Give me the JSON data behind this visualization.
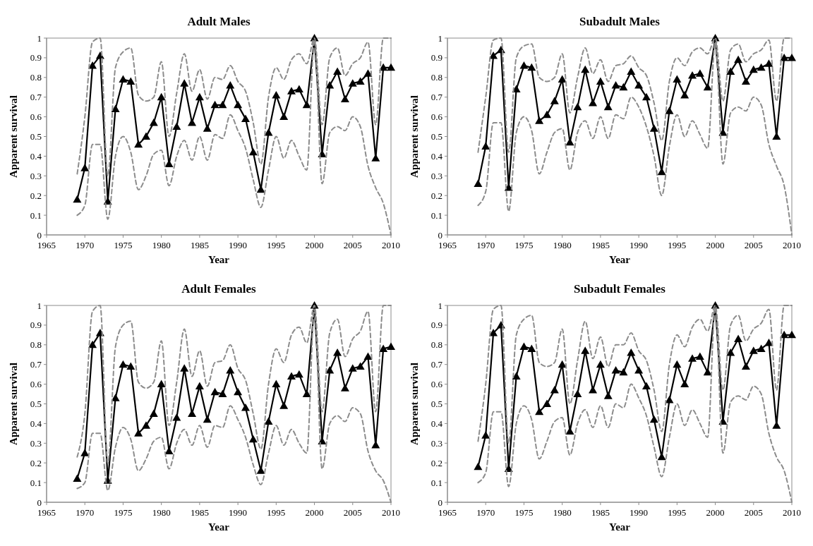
{
  "chart_data": [
    {
      "type": "line",
      "title": "Adult Males",
      "xlabel": "Year",
      "ylabel": "Apparent survival",
      "xlim": [
        1965,
        2010
      ],
      "xticks": [
        1965,
        1970,
        1975,
        1980,
        1985,
        1990,
        1995,
        2000,
        2005,
        2010
      ],
      "ylim": [
        0,
        1
      ],
      "yticks": [
        0,
        0.1,
        0.2,
        0.3,
        0.4,
        0.5,
        0.6,
        0.7,
        0.8,
        0.9,
        1
      ],
      "x": [
        1969,
        1970,
        1971,
        1972,
        1973,
        1974,
        1975,
        1976,
        1977,
        1978,
        1979,
        1980,
        1981,
        1982,
        1983,
        1984,
        1985,
        1986,
        1987,
        1988,
        1989,
        1990,
        1991,
        1992,
        1993,
        1994,
        1995,
        1996,
        1997,
        1998,
        1999,
        2000,
        2001,
        2002,
        2003,
        2004,
        2005,
        2006,
        2007,
        2008,
        2009,
        2010
      ],
      "series": [
        {
          "color": "#000000",
          "marker": "triangle",
          "line_style": "solid",
          "values": [
            0.18,
            0.34,
            0.86,
            0.91,
            0.17,
            0.64,
            0.79,
            0.78,
            0.46,
            0.5,
            0.57,
            0.7,
            0.36,
            0.55,
            0.77,
            0.57,
            0.7,
            0.54,
            0.66,
            0.66,
            0.76,
            0.66,
            0.59,
            0.42,
            0.23,
            0.52,
            0.71,
            0.6,
            0.73,
            0.74,
            0.66,
            1.0,
            0.41,
            0.76,
            0.83,
            0.69,
            0.77,
            0.78,
            0.82,
            0.39,
            0.85,
            0.85
          ]
        },
        {
          "color": "#8c8c8c",
          "marker": "none",
          "line_style": "dashed",
          "values": [
            0.31,
            0.6,
            0.98,
            1.0,
            0.3,
            0.85,
            0.93,
            0.95,
            0.71,
            0.68,
            0.7,
            0.88,
            0.5,
            0.72,
            0.92,
            0.73,
            0.84,
            0.69,
            0.8,
            0.79,
            0.86,
            0.78,
            0.73,
            0.57,
            0.36,
            0.7,
            0.85,
            0.79,
            0.89,
            0.92,
            0.87,
            1.0,
            0.56,
            0.9,
            0.95,
            0.81,
            0.87,
            0.9,
            0.98,
            0.56,
            1.0,
            1.0
          ]
        },
        {
          "color": "#8c8c8c",
          "marker": "none",
          "line_style": "dashed",
          "values": [
            0.1,
            0.15,
            0.46,
            0.46,
            0.08,
            0.4,
            0.5,
            0.42,
            0.23,
            0.3,
            0.41,
            0.43,
            0.25,
            0.4,
            0.48,
            0.38,
            0.5,
            0.38,
            0.51,
            0.49,
            0.61,
            0.53,
            0.44,
            0.28,
            0.14,
            0.33,
            0.5,
            0.39,
            0.48,
            0.4,
            0.33,
            0.99,
            0.26,
            0.52,
            0.55,
            0.53,
            0.6,
            0.55,
            0.35,
            0.24,
            0.16,
            0
          ]
        }
      ]
    },
    {
      "type": "line",
      "title": "Subadult Males",
      "xlabel": "Year",
      "ylabel": "Apparent survival",
      "xlim": [
        1965,
        2010
      ],
      "xticks": [
        1965,
        1970,
        1975,
        1980,
        1985,
        1990,
        1995,
        2000,
        2005,
        2010
      ],
      "ylim": [
        0,
        1
      ],
      "yticks": [
        0,
        0.1,
        0.2,
        0.3,
        0.4,
        0.5,
        0.6,
        0.7,
        0.8,
        0.9,
        1
      ],
      "x": [
        1969,
        1970,
        1971,
        1972,
        1973,
        1974,
        1975,
        1976,
        1977,
        1978,
        1979,
        1980,
        1981,
        1982,
        1983,
        1984,
        1985,
        1986,
        1987,
        1988,
        1989,
        1990,
        1991,
        1992,
        1993,
        1994,
        1995,
        1996,
        1997,
        1998,
        1999,
        2000,
        2001,
        2002,
        2003,
        2004,
        2005,
        2006,
        2007,
        2008,
        2009,
        2010
      ],
      "series": [
        {
          "color": "#000000",
          "marker": "triangle",
          "line_style": "solid",
          "values": [
            0.26,
            0.45,
            0.91,
            0.94,
            0.24,
            0.74,
            0.86,
            0.85,
            0.58,
            0.61,
            0.68,
            0.79,
            0.47,
            0.65,
            0.84,
            0.67,
            0.78,
            0.65,
            0.76,
            0.75,
            0.83,
            0.76,
            0.7,
            0.54,
            0.32,
            0.63,
            0.79,
            0.71,
            0.81,
            0.82,
            0.75,
            1.0,
            0.52,
            0.83,
            0.89,
            0.78,
            0.84,
            0.85,
            0.87,
            0.5,
            0.9,
            0.9
          ]
        },
        {
          "color": "#8c8c8c",
          "marker": "none",
          "line_style": "dashed",
          "values": [
            0.42,
            0.7,
            0.99,
            1.0,
            0.42,
            0.9,
            0.96,
            0.97,
            0.8,
            0.78,
            0.8,
            0.92,
            0.62,
            0.8,
            0.95,
            0.82,
            0.89,
            0.78,
            0.86,
            0.87,
            0.91,
            0.85,
            0.81,
            0.67,
            0.48,
            0.78,
            0.9,
            0.86,
            0.93,
            0.95,
            0.92,
            1.0,
            0.68,
            0.94,
            0.97,
            0.88,
            0.92,
            0.94,
            0.99,
            0.68,
            1.0,
            1.0
          ]
        },
        {
          "color": "#8c8c8c",
          "marker": "none",
          "line_style": "dashed",
          "values": [
            0.15,
            0.22,
            0.57,
            0.57,
            0.12,
            0.52,
            0.6,
            0.53,
            0.31,
            0.42,
            0.52,
            0.54,
            0.33,
            0.52,
            0.58,
            0.49,
            0.6,
            0.49,
            0.61,
            0.59,
            0.7,
            0.65,
            0.55,
            0.4,
            0.2,
            0.45,
            0.61,
            0.5,
            0.58,
            0.51,
            0.44,
            0.98,
            0.36,
            0.62,
            0.65,
            0.63,
            0.7,
            0.66,
            0.46,
            0.35,
            0.25,
            0
          ]
        }
      ]
    },
    {
      "type": "line",
      "title": "Adult Females",
      "xlabel": "Year",
      "ylabel": "Apparent survival",
      "xlim": [
        1965,
        2010
      ],
      "xticks": [
        1965,
        1970,
        1975,
        1980,
        1985,
        1990,
        1995,
        2000,
        2005,
        2010
      ],
      "ylim": [
        0,
        1
      ],
      "yticks": [
        0,
        0.1,
        0.2,
        0.3,
        0.4,
        0.5,
        0.6,
        0.7,
        0.8,
        0.9,
        1
      ],
      "x": [
        1969,
        1970,
        1971,
        1972,
        1973,
        1974,
        1975,
        1976,
        1977,
        1978,
        1979,
        1980,
        1981,
        1982,
        1983,
        1984,
        1985,
        1986,
        1987,
        1988,
        1989,
        1990,
        1991,
        1992,
        1993,
        1994,
        1995,
        1996,
        1997,
        1998,
        1999,
        2000,
        2001,
        2002,
        2003,
        2004,
        2005,
        2006,
        2007,
        2008,
        2009,
        2010
      ],
      "series": [
        {
          "color": "#000000",
          "marker": "triangle",
          "line_style": "solid",
          "values": [
            0.12,
            0.25,
            0.8,
            0.86,
            0.11,
            0.53,
            0.7,
            0.69,
            0.35,
            0.39,
            0.45,
            0.6,
            0.26,
            0.43,
            0.68,
            0.45,
            0.59,
            0.42,
            0.56,
            0.55,
            0.67,
            0.56,
            0.48,
            0.32,
            0.16,
            0.41,
            0.6,
            0.49,
            0.64,
            0.65,
            0.55,
            1.0,
            0.31,
            0.67,
            0.76,
            0.58,
            0.68,
            0.69,
            0.74,
            0.29,
            0.78,
            0.79
          ]
        },
        {
          "color": "#8c8c8c",
          "marker": "none",
          "line_style": "dashed",
          "values": [
            0.23,
            0.45,
            0.97,
            1.0,
            0.2,
            0.79,
            0.9,
            0.92,
            0.61,
            0.58,
            0.61,
            0.82,
            0.39,
            0.61,
            0.88,
            0.64,
            0.77,
            0.59,
            0.71,
            0.72,
            0.8,
            0.68,
            0.62,
            0.45,
            0.27,
            0.6,
            0.78,
            0.71,
            0.85,
            0.89,
            0.81,
            1.0,
            0.46,
            0.86,
            0.93,
            0.74,
            0.83,
            0.87,
            0.97,
            0.46,
            1.0,
            1.0
          ]
        },
        {
          "color": "#8c8c8c",
          "marker": "none",
          "line_style": "dashed",
          "values": [
            0.07,
            0.1,
            0.35,
            0.35,
            0.06,
            0.28,
            0.38,
            0.32,
            0.16,
            0.22,
            0.31,
            0.33,
            0.17,
            0.3,
            0.37,
            0.29,
            0.39,
            0.28,
            0.39,
            0.38,
            0.49,
            0.42,
            0.33,
            0.19,
            0.09,
            0.25,
            0.39,
            0.29,
            0.37,
            0.3,
            0.25,
            0.98,
            0.17,
            0.4,
            0.44,
            0.41,
            0.48,
            0.45,
            0.26,
            0.16,
            0.11,
            0
          ]
        }
      ]
    },
    {
      "type": "line",
      "title": "Subadult Females",
      "xlabel": "Year",
      "ylabel": "Apparent survival",
      "xlim": [
        1965,
        2010
      ],
      "xticks": [
        1965,
        1970,
        1975,
        1980,
        1985,
        1990,
        1995,
        2000,
        2005,
        2010
      ],
      "ylim": [
        0,
        1
      ],
      "yticks": [
        0,
        0.1,
        0.2,
        0.3,
        0.4,
        0.5,
        0.6,
        0.7,
        0.8,
        0.9,
        1
      ],
      "x": [
        1969,
        1970,
        1971,
        1972,
        1973,
        1974,
        1975,
        1976,
        1977,
        1978,
        1979,
        1980,
        1981,
        1982,
        1983,
        1984,
        1985,
        1986,
        1987,
        1988,
        1989,
        1990,
        1991,
        1992,
        1993,
        1994,
        1995,
        1996,
        1997,
        1998,
        1999,
        2000,
        2001,
        2002,
        2003,
        2004,
        2005,
        2006,
        2007,
        2008,
        2009,
        2010
      ],
      "series": [
        {
          "color": "#000000",
          "marker": "triangle",
          "line_style": "solid",
          "values": [
            0.18,
            0.34,
            0.86,
            0.9,
            0.17,
            0.64,
            0.79,
            0.78,
            0.46,
            0.5,
            0.57,
            0.7,
            0.36,
            0.55,
            0.77,
            0.57,
            0.7,
            0.54,
            0.67,
            0.66,
            0.76,
            0.67,
            0.59,
            0.42,
            0.23,
            0.52,
            0.7,
            0.6,
            0.73,
            0.74,
            0.66,
            1.0,
            0.41,
            0.76,
            0.83,
            0.69,
            0.77,
            0.78,
            0.81,
            0.39,
            0.85,
            0.85
          ]
        },
        {
          "color": "#8c8c8c",
          "marker": "none",
          "line_style": "dashed",
          "values": [
            0.31,
            0.6,
            0.98,
            1.0,
            0.3,
            0.85,
            0.93,
            0.95,
            0.71,
            0.69,
            0.71,
            0.88,
            0.5,
            0.72,
            0.92,
            0.73,
            0.84,
            0.69,
            0.8,
            0.8,
            0.86,
            0.77,
            0.72,
            0.57,
            0.36,
            0.7,
            0.85,
            0.79,
            0.89,
            0.93,
            0.87,
            1.0,
            0.57,
            0.9,
            0.95,
            0.82,
            0.88,
            0.91,
            0.98,
            0.57,
            1.0,
            1.0
          ]
        },
        {
          "color": "#8c8c8c",
          "marker": "none",
          "line_style": "dashed",
          "values": [
            0.1,
            0.15,
            0.46,
            0.46,
            0.08,
            0.4,
            0.49,
            0.42,
            0.22,
            0.31,
            0.41,
            0.43,
            0.24,
            0.4,
            0.47,
            0.38,
            0.49,
            0.38,
            0.5,
            0.48,
            0.6,
            0.53,
            0.44,
            0.28,
            0.13,
            0.33,
            0.5,
            0.39,
            0.47,
            0.4,
            0.33,
            0.99,
            0.25,
            0.51,
            0.54,
            0.52,
            0.59,
            0.55,
            0.35,
            0.23,
            0.16,
            0
          ]
        }
      ]
    }
  ]
}
